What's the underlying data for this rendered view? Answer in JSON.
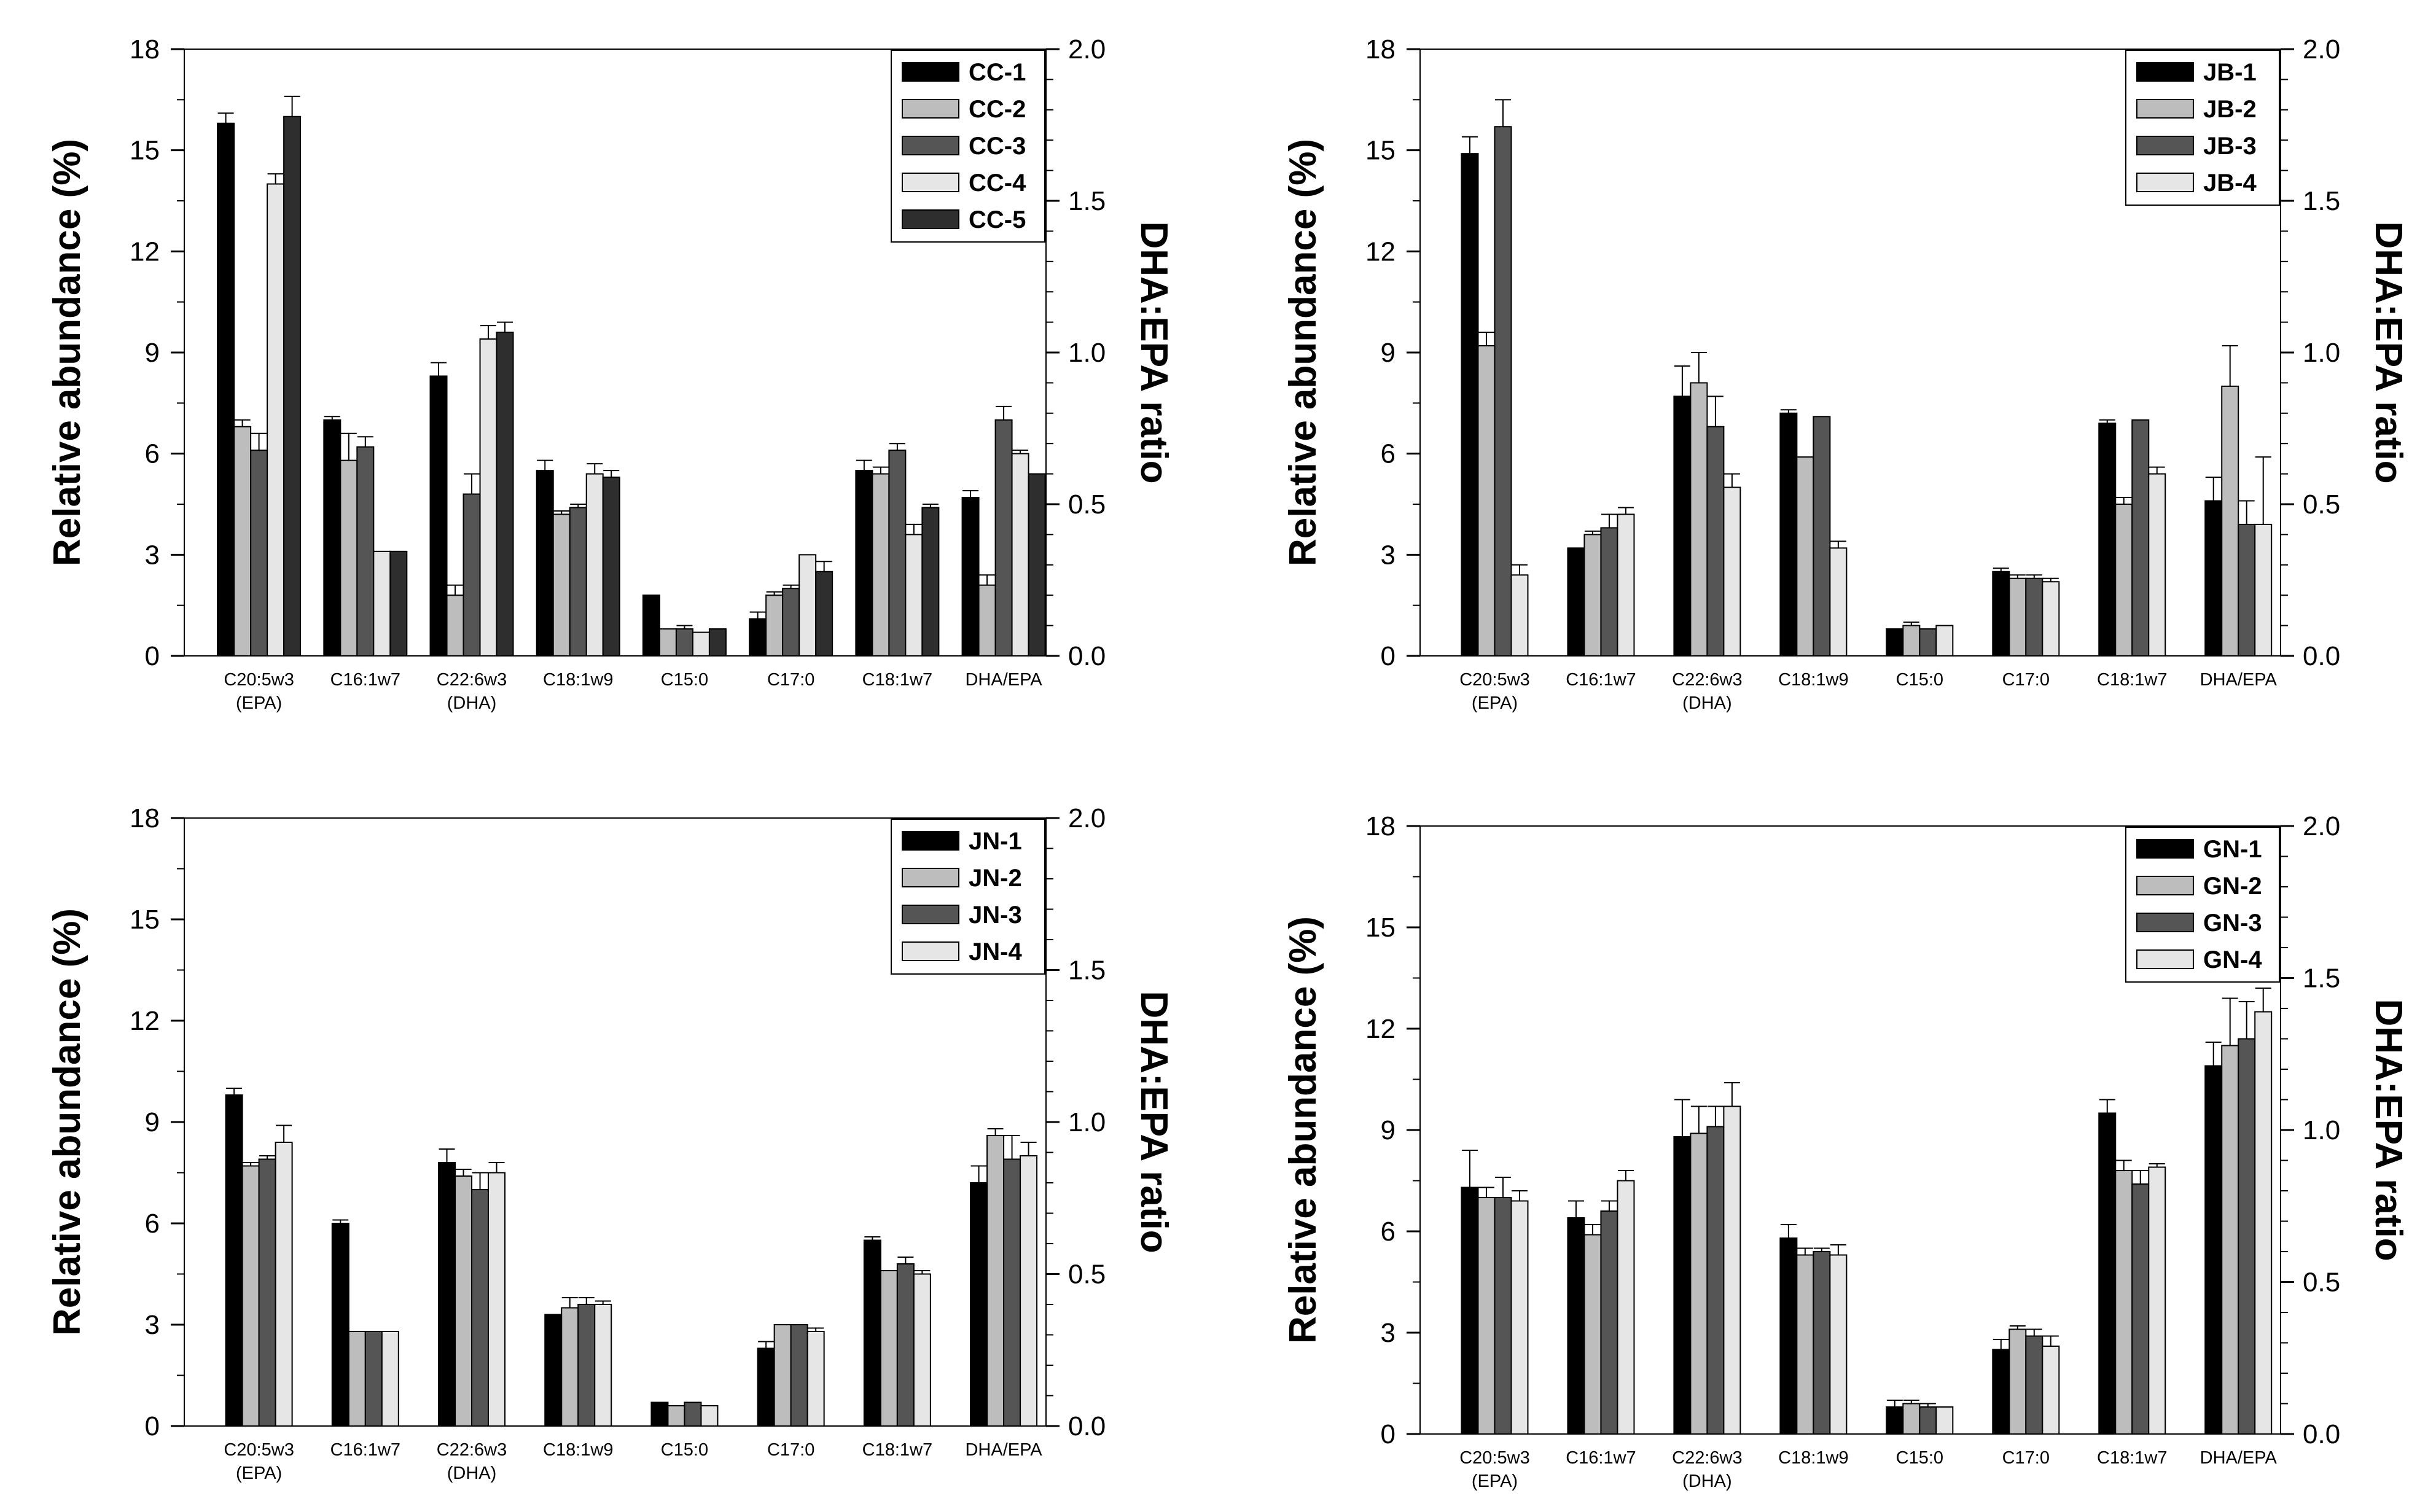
{
  "palette": {
    "5": [
      "#000000",
      "#bdbdbd",
      "#555555",
      "#e6e6e6",
      "#2e2e2e"
    ],
    "4": [
      "#000000",
      "#bdbdbd",
      "#555555",
      "#e6e6e6"
    ]
  },
  "chart_data": [
    {
      "id": "cc",
      "type": "bar",
      "categories": [
        "C20:5w3",
        "C16:1w7",
        "C22:6w3",
        "C18:1w9",
        "C15:0",
        "C17:0",
        "C18:1w7",
        "DHA/EPA"
      ],
      "category_sublabels": [
        "(EPA)",
        "",
        "(DHA)",
        "",
        "",
        "",
        "",
        ""
      ],
      "ylabel": "Relative abundance (%)",
      "y2label": "DHA:EPA ratio",
      "ylim": [
        0,
        18
      ],
      "yticks": [
        0,
        3,
        6,
        9,
        12,
        15,
        18
      ],
      "y2lim": [
        0,
        2
      ],
      "y2ticks": [
        "0.0",
        "0.5",
        "1.0",
        "1.5",
        "2.0"
      ],
      "legend_position": "top-right",
      "series": [
        {
          "name": "CC-1",
          "values": [
            15.8,
            7.0,
            8.3,
            5.5,
            1.8,
            1.1,
            5.5,
            4.7
          ],
          "errors": [
            0.3,
            0.1,
            0.4,
            0.3,
            0.0,
            0.2,
            0.3,
            0.2
          ]
        },
        {
          "name": "CC-2",
          "values": [
            6.8,
            5.8,
            1.8,
            4.2,
            0.8,
            1.8,
            5.4,
            2.1
          ],
          "errors": [
            0.2,
            0.8,
            0.3,
            0.1,
            0.0,
            0.1,
            0.2,
            0.3
          ]
        },
        {
          "name": "CC-3",
          "values": [
            6.1,
            6.2,
            4.8,
            4.4,
            0.8,
            2.0,
            6.1,
            7.0
          ],
          "errors": [
            0.5,
            0.3,
            0.6,
            0.1,
            0.1,
            0.1,
            0.2,
            0.4
          ]
        },
        {
          "name": "CC-4",
          "values": [
            14.0,
            3.1,
            9.4,
            5.4,
            0.7,
            3.0,
            3.6,
            6.0
          ],
          "errors": [
            0.3,
            0.0,
            0.4,
            0.3,
            0.0,
            0.0,
            0.3,
            0.1
          ]
        },
        {
          "name": "CC-5",
          "values": [
            16.0,
            3.1,
            9.6,
            5.3,
            0.8,
            2.5,
            4.4,
            5.4
          ],
          "errors": [
            0.6,
            0.0,
            0.3,
            0.2,
            0.0,
            0.3,
            0.1,
            0.0
          ]
        }
      ]
    },
    {
      "id": "jb",
      "type": "bar",
      "categories": [
        "C20:5w3",
        "C16:1w7",
        "C22:6w3",
        "C18:1w9",
        "C15:0",
        "C17:0",
        "C18:1w7",
        "DHA/EPA"
      ],
      "category_sublabels": [
        "(EPA)",
        "",
        "(DHA)",
        "",
        "",
        "",
        "",
        ""
      ],
      "ylabel": "Relative abundance (%)",
      "y2label": "DHA:EPA ratio",
      "ylim": [
        0,
        18
      ],
      "yticks": [
        0,
        3,
        6,
        9,
        12,
        15,
        18
      ],
      "y2lim": [
        0,
        2
      ],
      "y2ticks": [
        "0.0",
        "0.5",
        "1.0",
        "1.5",
        "2.0"
      ],
      "legend_position": "top-right",
      "series": [
        {
          "name": "JB-1",
          "values": [
            14.9,
            3.2,
            7.7,
            7.2,
            0.8,
            2.5,
            6.9,
            4.6
          ],
          "errors": [
            0.5,
            0.0,
            0.9,
            0.1,
            0.0,
            0.1,
            0.1,
            0.7
          ]
        },
        {
          "name": "JB-2",
          "values": [
            9.2,
            3.6,
            8.1,
            5.9,
            0.9,
            2.3,
            4.5,
            8.0
          ],
          "errors": [
            0.4,
            0.1,
            0.9,
            0.0,
            0.1,
            0.1,
            0.2,
            1.2
          ]
        },
        {
          "name": "JB-3",
          "values": [
            15.7,
            3.8,
            6.8,
            7.1,
            0.8,
            2.3,
            7.0,
            3.9
          ],
          "errors": [
            0.8,
            0.4,
            0.9,
            0.0,
            0.0,
            0.1,
            0.0,
            0.7
          ]
        },
        {
          "name": "JB-4",
          "values": [
            2.4,
            4.2,
            5.0,
            3.2,
            0.9,
            2.2,
            5.4,
            3.9
          ],
          "errors": [
            0.3,
            0.2,
            0.4,
            0.2,
            0.0,
            0.1,
            0.2,
            2.0
          ]
        }
      ]
    },
    {
      "id": "jn",
      "type": "bar",
      "categories": [
        "C20:5w3",
        "C16:1w7",
        "C22:6w3",
        "C18:1w9",
        "C15:0",
        "C17:0",
        "C18:1w7",
        "DHA/EPA"
      ],
      "category_sublabels": [
        "(EPA)",
        "",
        "(DHA)",
        "",
        "",
        "",
        "",
        ""
      ],
      "ylabel": "Relative abundance (%)",
      "y2label": "DHA:EPA ratio",
      "ylim": [
        0,
        18
      ],
      "yticks": [
        0,
        3,
        6,
        9,
        12,
        15,
        18
      ],
      "y2lim": [
        0,
        2
      ],
      "y2ticks": [
        "0.0",
        "0.5",
        "1.0",
        "1.5",
        "2.0"
      ],
      "legend_position": "top-right",
      "series": [
        {
          "name": "JN-1",
          "values": [
            9.8,
            6.0,
            7.8,
            3.3,
            0.7,
            2.3,
            5.5,
            7.2
          ],
          "errors": [
            0.2,
            0.1,
            0.4,
            0.0,
            0.0,
            0.2,
            0.1,
            0.5
          ]
        },
        {
          "name": "JN-2",
          "values": [
            7.7,
            2.8,
            7.4,
            3.5,
            0.6,
            3.0,
            4.6,
            8.6
          ],
          "errors": [
            0.1,
            0.0,
            0.2,
            0.3,
            0.0,
            0.0,
            0.0,
            0.2
          ]
        },
        {
          "name": "JN-3",
          "values": [
            7.9,
            2.8,
            7.0,
            3.6,
            0.7,
            3.0,
            4.8,
            7.9
          ],
          "errors": [
            0.1,
            0.0,
            0.5,
            0.2,
            0.0,
            0.0,
            0.2,
            0.7
          ]
        },
        {
          "name": "JN-4",
          "values": [
            8.4,
            2.8,
            7.5,
            3.6,
            0.6,
            2.8,
            4.5,
            8.0
          ],
          "errors": [
            0.5,
            0.0,
            0.3,
            0.1,
            0.0,
            0.1,
            0.1,
            0.4
          ]
        }
      ]
    },
    {
      "id": "gn",
      "type": "bar",
      "categories": [
        "C20:5w3",
        "C16:1w7",
        "C22:6w3",
        "C18:1w9",
        "C15:0",
        "C17:0",
        "C18:1w7",
        "DHA/EPA"
      ],
      "category_sublabels": [
        "(EPA)",
        "",
        "(DHA)",
        "",
        "",
        "",
        "",
        ""
      ],
      "ylabel": "Relative abundance (%)",
      "y2label": "DHA:EPA ratio",
      "ylim": [
        0,
        18
      ],
      "yticks": [
        0,
        3,
        6,
        9,
        12,
        15,
        18
      ],
      "y2lim": [
        0,
        2
      ],
      "y2ticks": [
        "0.0",
        "0.5",
        "1.0",
        "1.5",
        "2.0"
      ],
      "legend_position": "top-right",
      "series": [
        {
          "name": "GN-1",
          "values": [
            7.3,
            6.4,
            8.8,
            5.8,
            0.8,
            2.5,
            9.5,
            10.9
          ],
          "errors": [
            1.1,
            0.5,
            1.1,
            0.4,
            0.2,
            0.3,
            0.4,
            0.7
          ]
        },
        {
          "name": "GN-2",
          "values": [
            7.0,
            5.9,
            8.9,
            5.3,
            0.9,
            3.1,
            7.8,
            11.5
          ],
          "errors": [
            0.3,
            0.3,
            0.8,
            0.2,
            0.1,
            0.1,
            0.3,
            1.4
          ]
        },
        {
          "name": "GN-3",
          "values": [
            7.0,
            6.6,
            9.1,
            5.4,
            0.8,
            2.9,
            7.4,
            11.7
          ],
          "errors": [
            0.6,
            0.3,
            0.6,
            0.1,
            0.1,
            0.2,
            0.4,
            1.1
          ]
        },
        {
          "name": "GN-4",
          "values": [
            6.9,
            7.5,
            9.7,
            5.3,
            0.8,
            2.6,
            7.9,
            12.5
          ],
          "errors": [
            0.3,
            0.3,
            0.7,
            0.3,
            0.0,
            0.3,
            0.1,
            0.7
          ]
        }
      ]
    }
  ]
}
